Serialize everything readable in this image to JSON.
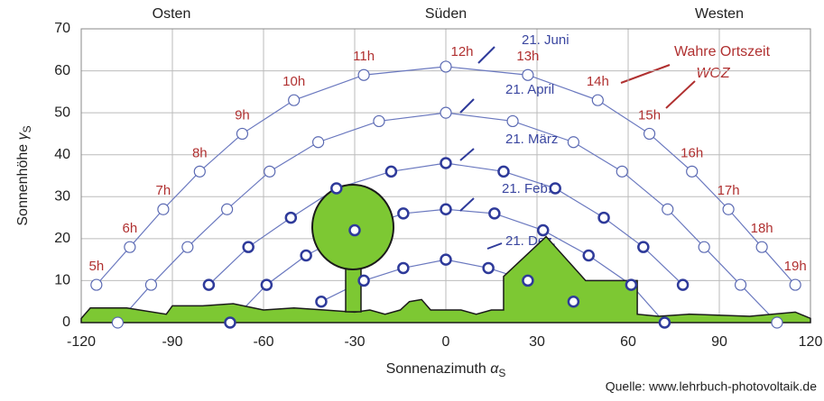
{
  "chart_data": {
    "type": "sunpath",
    "top_labels": [
      "Osten",
      "Süden",
      "Westen"
    ],
    "x_label": "Sonnenazimuth",
    "x_symbol": "α",
    "x_symbol_sub": "S",
    "y_label": "Sonnenhöhe",
    "y_symbol": "γ",
    "y_symbol_sub": "S",
    "source": "Quelle: www.lehrbuch-photovoltaik.de",
    "annotation": [
      "Wahre Ortszeit",
      "WOZ"
    ],
    "xlim": [
      -120,
      120
    ],
    "xticks": [
      -120,
      -90,
      -60,
      -30,
      0,
      30,
      60,
      90,
      120
    ],
    "ylim": [
      0,
      70
    ],
    "yticks": [
      0,
      10,
      20,
      30,
      40,
      50,
      60,
      70
    ],
    "grid": true,
    "hour_labels": [
      "5h",
      "6h",
      "7h",
      "8h",
      "9h",
      "10h",
      "11h",
      "12h",
      "13h",
      "14h",
      "15h",
      "16h",
      "17h",
      "18h",
      "19h"
    ],
    "series": [
      {
        "name": "21. Juni",
        "color": "#5b6ab3",
        "style": "thin",
        "x": [
          -115,
          -104,
          -93,
          -81,
          -67,
          -50,
          -27,
          0,
          27,
          50,
          67,
          81,
          93,
          104,
          115
        ],
        "values": [
          9,
          18,
          27,
          36,
          45,
          53,
          59,
          61,
          59,
          53,
          45,
          36,
          27,
          18,
          9
        ]
      },
      {
        "name": "21. April",
        "color": "#5b6ab3",
        "style": "thin",
        "x": [
          -108,
          -97,
          -85,
          -72,
          -58,
          -42,
          -22,
          0,
          22,
          42,
          58,
          73,
          85,
          97,
          109
        ],
        "values": [
          0,
          9,
          18,
          27,
          36,
          43,
          48,
          50,
          48,
          43,
          36,
          27,
          18,
          9,
          0
        ]
      },
      {
        "name": "21. März",
        "color": "#2e3a9a",
        "style": "bold",
        "x": [
          -78,
          -65,
          -51,
          -36,
          -18,
          0,
          19,
          36,
          52,
          65,
          78
        ],
        "values": [
          9,
          18,
          25,
          32,
          36,
          38,
          36,
          32,
          25,
          18,
          9
        ]
      },
      {
        "name": "21. Feb.",
        "color": "#2e3a9a",
        "style": "bold",
        "x": [
          -71,
          -59,
          -46,
          -30,
          -14,
          0,
          16,
          32,
          47,
          61,
          72
        ],
        "values": [
          0,
          9,
          16,
          22,
          26,
          27,
          26,
          22,
          16,
          9,
          0
        ]
      },
      {
        "name": "21. Dez.",
        "color": "#2e3a9a",
        "style": "bold",
        "x": [
          -41,
          -27,
          -14,
          0,
          14,
          27,
          42
        ],
        "values": [
          5,
          10,
          13,
          15,
          13,
          10,
          5
        ]
      }
    ],
    "obstacle": {
      "color": "#7dc833",
      "x": [
        -120,
        -117,
        -105,
        -92,
        -90,
        -80,
        -70,
        -60,
        -50,
        -40,
        -30,
        -25,
        -20,
        -15,
        -12,
        -8,
        -5,
        0,
        5,
        10,
        15,
        19,
        19,
        33,
        46,
        63,
        63,
        70,
        80,
        100,
        115,
        120
      ],
      "values": [
        1,
        3.5,
        3.5,
        2,
        4,
        4,
        4.5,
        3,
        3.5,
        3,
        2.5,
        3,
        2,
        3,
        5,
        5.5,
        3,
        3,
        3,
        2,
        3,
        3,
        11,
        20.5,
        10,
        10,
        2,
        1.5,
        2,
        1.5,
        2.5,
        1
      ]
    }
  }
}
